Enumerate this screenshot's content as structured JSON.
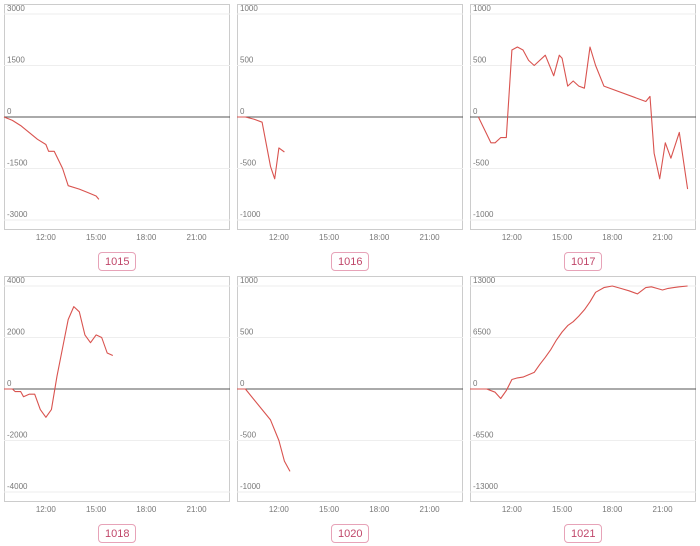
{
  "charts_page": {
    "line_color": "#d9534f",
    "baseline_color": "#555555",
    "grid_color": "#eeeeee",
    "frame_color": "#cccccc",
    "badge_border_color": "#e7a3b8",
    "badge_text_color": "#c0476a"
  },
  "chart_data": [
    {
      "type": "line",
      "title": "1015",
      "badge": "1015",
      "yticks": [
        "3000",
        "1500",
        "0",
        "-1500",
        "-3000"
      ],
      "ylim": [
        -3000,
        3000
      ],
      "xticks": [
        "12:00",
        "15:00",
        "18:00",
        "21:00"
      ],
      "xlim": [
        "09:30",
        "23:00"
      ],
      "series": [
        {
          "x": [
            "09:30",
            "10:00",
            "10:30",
            "11:00",
            "11:30",
            "12:00",
            "12:10",
            "12:30",
            "13:00",
            "13:20",
            "14:00",
            "14:30",
            "15:00",
            "15:10"
          ],
          "values": [
            0,
            -100,
            -250,
            -450,
            -650,
            -800,
            -1000,
            -1000,
            -1500,
            -2000,
            -2100,
            -2200,
            -2300,
            -2400
          ]
        }
      ]
    },
    {
      "type": "line",
      "title": "1016",
      "badge": "1016",
      "yticks": [
        "1000",
        "500",
        "0",
        "-500",
        "-1000"
      ],
      "ylim": [
        -1000,
        1000
      ],
      "xticks": [
        "12:00",
        "15:00",
        "18:00",
        "21:00"
      ],
      "xlim": [
        "09:30",
        "23:00"
      ],
      "series": [
        {
          "x": [
            "09:30",
            "10:00",
            "10:30",
            "11:00",
            "11:30",
            "11:45",
            "12:00",
            "12:20"
          ],
          "values": [
            0,
            0,
            -20,
            -50,
            -480,
            -600,
            -300,
            -340
          ]
        }
      ]
    },
    {
      "type": "line",
      "title": "1017",
      "badge": "1017",
      "yticks": [
        "1000",
        "500",
        "0",
        "-500",
        "-1000"
      ],
      "ylim": [
        -1000,
        1000
      ],
      "xticks": [
        "12:00",
        "15:00",
        "18:00",
        "21:00"
      ],
      "xlim": [
        "09:30",
        "23:00"
      ],
      "series": [
        {
          "x": [
            "10:00",
            "10:45",
            "11:00",
            "11:20",
            "11:40",
            "12:00",
            "12:20",
            "12:40",
            "13:00",
            "13:20",
            "14:00",
            "14:30",
            "14:50",
            "15:00",
            "15:20",
            "15:40",
            "16:00",
            "16:20",
            "16:40",
            "17:00",
            "17:30",
            "20:00",
            "20:15",
            "20:30",
            "20:50",
            "21:10",
            "21:30",
            "22:00",
            "22:30"
          ],
          "values": [
            0,
            -250,
            -250,
            -200,
            -200,
            650,
            680,
            650,
            550,
            500,
            600,
            400,
            600,
            570,
            300,
            350,
            300,
            280,
            680,
            500,
            300,
            150,
            200,
            -350,
            -600,
            -250,
            -400,
            -150,
            -700
          ]
        }
      ]
    },
    {
      "type": "line",
      "title": "1018",
      "badge": "1018",
      "yticks": [
        "4000",
        "2000",
        "0",
        "-2000",
        "-4000"
      ],
      "ylim": [
        -4000,
        4000
      ],
      "xticks": [
        "12:00",
        "15:00",
        "18:00",
        "21:00"
      ],
      "xlim": [
        "09:30",
        "23:00"
      ],
      "series": [
        {
          "x": [
            "09:30",
            "10:00",
            "10:10",
            "10:30",
            "10:40",
            "11:00",
            "11:20",
            "11:40",
            "12:00",
            "12:20",
            "12:40",
            "13:00",
            "13:20",
            "13:40",
            "14:00",
            "14:20",
            "14:40",
            "15:00",
            "15:20",
            "15:40",
            "16:00"
          ],
          "values": [
            0,
            0,
            -100,
            -100,
            -300,
            -200,
            -200,
            -800,
            -1100,
            -800,
            500,
            1600,
            2700,
            3200,
            3000,
            2100,
            1800,
            2100,
            2000,
            1400,
            1300
          ]
        }
      ]
    },
    {
      "type": "line",
      "title": "1020",
      "badge": "1020",
      "yticks": [
        "1000",
        "500",
        "0",
        "-500",
        "-1000"
      ],
      "ylim": [
        -1000,
        1000
      ],
      "xticks": [
        "12:00",
        "15:00",
        "18:00",
        "21:00"
      ],
      "xlim": [
        "09:30",
        "23:00"
      ],
      "series": [
        {
          "x": [
            "09:30",
            "10:00",
            "11:30",
            "12:00",
            "12:20",
            "12:40"
          ],
          "values": [
            0,
            0,
            -300,
            -500,
            -700,
            -800
          ]
        }
      ]
    },
    {
      "type": "line",
      "title": "1021",
      "badge": "1021",
      "yticks": [
        "13000",
        "6500",
        "0",
        "-6500",
        "-13000"
      ],
      "ylim": [
        -13000,
        13000
      ],
      "xticks": [
        "12:00",
        "15:00",
        "18:00",
        "21:00"
      ],
      "xlim": [
        "09:30",
        "23:00"
      ],
      "series": [
        {
          "x": [
            "09:30",
            "10:00",
            "10:30",
            "11:00",
            "11:20",
            "11:40",
            "12:00",
            "12:20",
            "12:40",
            "13:00",
            "13:20",
            "13:40",
            "14:00",
            "14:20",
            "14:40",
            "15:00",
            "15:20",
            "15:40",
            "16:00",
            "16:20",
            "16:40",
            "17:00",
            "17:30",
            "18:00",
            "18:30",
            "19:00",
            "19:30",
            "20:00",
            "20:20",
            "20:40",
            "21:00",
            "21:20",
            "21:40",
            "22:00",
            "22:30"
          ],
          "values": [
            0,
            0,
            0,
            -400,
            -1200,
            -200,
            1200,
            1400,
            1500,
            1800,
            2100,
            3100,
            4000,
            5000,
            6200,
            7200,
            8000,
            8500,
            9200,
            10000,
            11000,
            12200,
            12800,
            13000,
            12700,
            12400,
            12000,
            12800,
            12900,
            12700,
            12500,
            12700,
            12800,
            12900,
            13000
          ]
        }
      ]
    }
  ]
}
